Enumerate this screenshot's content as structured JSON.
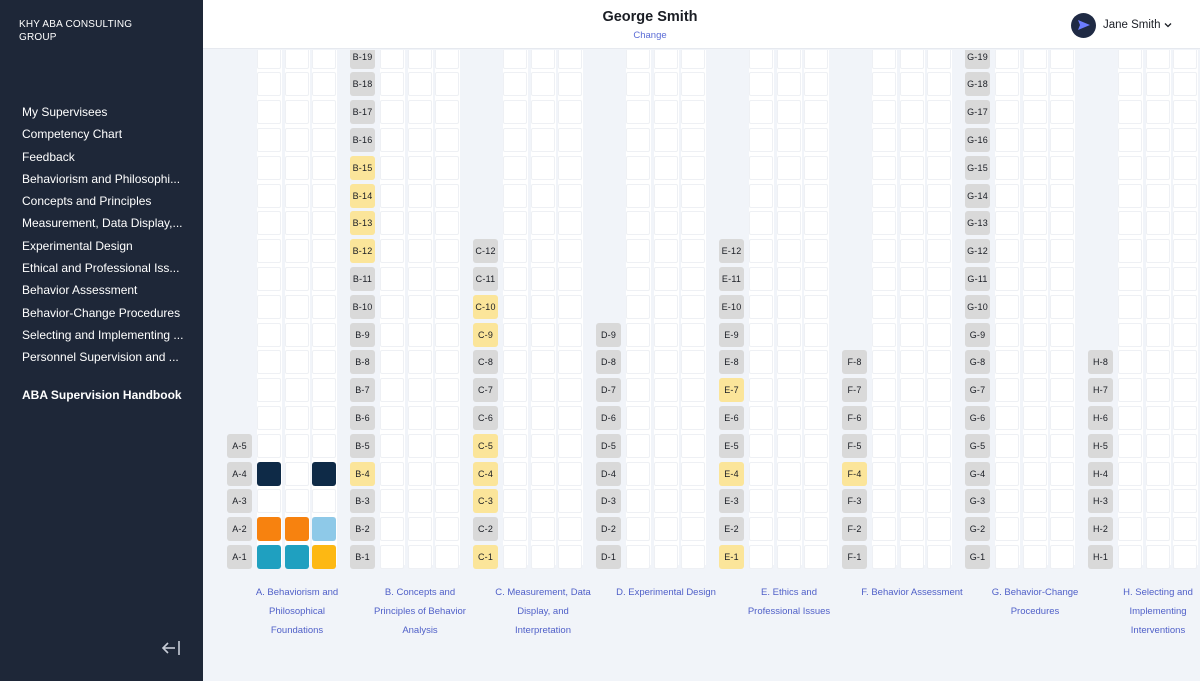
{
  "sidebar": {
    "brand": "KHY ABA CONSULTING GROUP",
    "nav": [
      "My Supervisees",
      "Competency Chart",
      "Feedback",
      "Behaviorism and Philosophi...",
      "Concepts and Principles",
      "Measurement, Data Display,...",
      "Experimental Design",
      "Ethical and Professional Iss...",
      "Behavior Assessment",
      "Behavior-Change Procedures",
      "Selecting and Implementing ...",
      "Personnel Supervision and ..."
    ],
    "handbook": "ABA Supervision Handbook",
    "collapse_icon": "collapse-left-icon"
  },
  "header": {
    "client_name": "George Smith",
    "change_label": "Change",
    "user_name": "Jane Smith",
    "user_icon": "send-arrow-icon",
    "dropdown_icon": "chevron-down-icon"
  },
  "colors": {
    "sidebar_bg": "#1e2738",
    "label_gray": "#d9d9d9",
    "label_highlight": "#fbe59a",
    "navy": "#0e2a47",
    "orange": "#f7820f",
    "light_blue": "#8ec9e8",
    "teal": "#1fa0c0",
    "amber": "#fdb813",
    "link": "#4f5fc8"
  },
  "domains": [
    {
      "letter": "A",
      "title": "A. Behaviorism and Philosophical Foundations",
      "count": 5,
      "highlighted": [],
      "fills": [
        {
          "item": 4,
          "col": 0,
          "color": "navy"
        },
        {
          "item": 4,
          "col": 2,
          "color": "navy"
        },
        {
          "item": 2,
          "col": 0,
          "color": "orange"
        },
        {
          "item": 2,
          "col": 1,
          "color": "orange"
        },
        {
          "item": 2,
          "col": 2,
          "color": "light_blue"
        },
        {
          "item": 1,
          "col": 0,
          "color": "teal"
        },
        {
          "item": 1,
          "col": 1,
          "color": "teal"
        },
        {
          "item": 1,
          "col": 2,
          "color": "amber"
        }
      ]
    },
    {
      "letter": "B",
      "title": "B. Concepts and Principles of Behavior Analysis",
      "count": 19,
      "highlighted": [
        4,
        12,
        13,
        14,
        15
      ],
      "fills": []
    },
    {
      "letter": "C",
      "title": "C. Measurement, Data Display, and Interpretation",
      "count": 12,
      "highlighted": [
        1,
        3,
        4,
        5,
        9,
        10
      ],
      "fills": []
    },
    {
      "letter": "D",
      "title": "D. Experimental Design",
      "count": 9,
      "highlighted": [],
      "fills": []
    },
    {
      "letter": "E",
      "title": "E. Ethics and Professional Issues",
      "count": 12,
      "highlighted": [
        1,
        4,
        7
      ],
      "fills": []
    },
    {
      "letter": "F",
      "title": "F. Behavior Assessment",
      "count": 8,
      "highlighted": [
        4
      ],
      "fills": []
    },
    {
      "letter": "G",
      "title": "G. Behavior-Change Procedures",
      "count": 19,
      "highlighted": [],
      "fills": []
    },
    {
      "letter": "H",
      "title": "H. Selecting and Implementing Interventions",
      "count": 8,
      "highlighted": [],
      "fills": []
    }
  ]
}
